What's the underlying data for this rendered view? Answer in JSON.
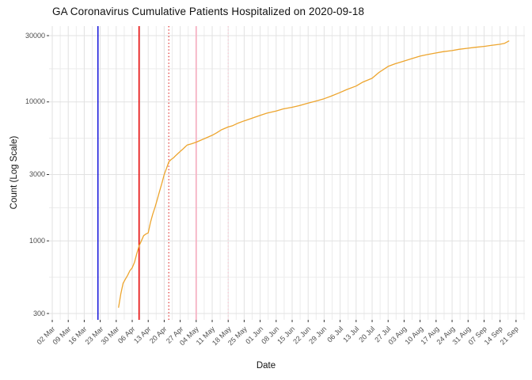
{
  "title": "GA Coronavirus Cumulative Patients Hospitalized on 2020-09-18",
  "colors": {
    "series_line": "#EDA52E",
    "vline_blue": "#1212D9",
    "vline_red": "#E80000",
    "vline_red_dotted": "#DE1414",
    "vline_pink": "#F6B2C3",
    "vline_pink_dotted": "#FAC6D2",
    "grid_major": "#E2E2E2",
    "grid_minor": "#ECECEC",
    "tick_mark": "#333333",
    "tick_label": "#4d4d4d",
    "background": "#FFFFFF"
  },
  "chart_data": {
    "type": "line",
    "title": "GA Coronavirus Cumulative Patients Hospitalized on 2020-09-18",
    "xlabel": "Date",
    "ylabel": "Count (Log Scale)",
    "y_scale": "log10",
    "ylim": [
      280,
      33000
    ],
    "grid": true,
    "legend_position": "none",
    "y_ticks": [
      300,
      1000,
      3000,
      10000,
      30000
    ],
    "y_tick_labels": [
      "300",
      "1000",
      "3000",
      "10000",
      "30000"
    ],
    "y_minor_gridlines": [
      548,
      1732,
      5477,
      17321
    ],
    "x_tick_labels": [
      "02 Mar",
      "09 Mar",
      "16 Mar",
      "23 Mar",
      "30 Mar",
      "06 Apr",
      "13 Apr",
      "20 Apr",
      "27 Apr",
      "04 May",
      "11 May",
      "18 May",
      "25 May",
      "01 Jun",
      "08 Jun",
      "15 Jun",
      "22 Jun",
      "29 Jun",
      "06 Jul",
      "13 Jul",
      "20 Jul",
      "27 Jul",
      "03 Aug",
      "10 Aug",
      "17 Aug",
      "24 Aug",
      "31 Aug",
      "07 Sep",
      "14 Sep",
      "21 Sep"
    ],
    "x_tick_dates": [
      "2020-03-02",
      "2020-03-09",
      "2020-03-16",
      "2020-03-23",
      "2020-03-30",
      "2020-04-06",
      "2020-04-13",
      "2020-04-20",
      "2020-04-27",
      "2020-05-04",
      "2020-05-11",
      "2020-05-18",
      "2020-05-25",
      "2020-06-01",
      "2020-06-08",
      "2020-06-15",
      "2020-06-22",
      "2020-06-29",
      "2020-07-06",
      "2020-07-13",
      "2020-07-20",
      "2020-07-27",
      "2020-08-03",
      "2020-08-10",
      "2020-08-17",
      "2020-08-24",
      "2020-08-31",
      "2020-09-07",
      "2020-09-14",
      "2020-09-21"
    ],
    "vlines": [
      {
        "name": "vline-blue-solid",
        "date": "2020-03-22",
        "color": "#1212D9",
        "style": "solid",
        "width": 1.5
      },
      {
        "name": "vline-red-solid",
        "date": "2020-04-09",
        "color": "#E80000",
        "style": "solid",
        "width": 1.5
      },
      {
        "name": "vline-red-dotted",
        "date": "2020-04-22",
        "color": "#DE1414",
        "style": "dotted",
        "width": 1.1
      },
      {
        "name": "vline-pink-solid",
        "date": "2020-05-04",
        "color": "#F6B2C3",
        "style": "solid",
        "width": 1.8
      },
      {
        "name": "vline-pink-dotted",
        "date": "2020-05-18",
        "color": "#FAC6D2",
        "style": "dotted",
        "width": 1.2
      }
    ],
    "series": [
      {
        "name": "Cumulative Patients Hospitalized",
        "color": "#EDA52E",
        "points": [
          [
            "2020-03-31",
            330
          ],
          [
            "2020-04-01",
            415
          ],
          [
            "2020-04-02",
            495
          ],
          [
            "2020-04-03",
            530
          ],
          [
            "2020-04-04",
            565
          ],
          [
            "2020-04-05",
            610
          ],
          [
            "2020-04-06",
            640
          ],
          [
            "2020-04-07",
            700
          ],
          [
            "2020-04-08",
            810
          ],
          [
            "2020-04-09",
            920
          ],
          [
            "2020-04-10",
            1000
          ],
          [
            "2020-04-11",
            1090
          ],
          [
            "2020-04-12",
            1120
          ],
          [
            "2020-04-13",
            1140
          ],
          [
            "2020-04-14",
            1360
          ],
          [
            "2020-04-15",
            1560
          ],
          [
            "2020-04-16",
            1750
          ],
          [
            "2020-04-17",
            2000
          ],
          [
            "2020-04-18",
            2280
          ],
          [
            "2020-04-19",
            2600
          ],
          [
            "2020-04-20",
            3000
          ],
          [
            "2020-04-21",
            3320
          ],
          [
            "2020-04-22",
            3700
          ],
          [
            "2020-04-23",
            3850
          ],
          [
            "2020-04-24",
            3950
          ],
          [
            "2020-04-25",
            4100
          ],
          [
            "2020-04-26",
            4250
          ],
          [
            "2020-04-27",
            4400
          ],
          [
            "2020-04-28",
            4550
          ],
          [
            "2020-04-29",
            4720
          ],
          [
            "2020-04-30",
            4890
          ],
          [
            "2020-05-02",
            5000
          ],
          [
            "2020-05-04",
            5130
          ],
          [
            "2020-05-06",
            5300
          ],
          [
            "2020-05-08",
            5480
          ],
          [
            "2020-05-11",
            5750
          ],
          [
            "2020-05-13",
            6000
          ],
          [
            "2020-05-15",
            6300
          ],
          [
            "2020-05-18",
            6600
          ],
          [
            "2020-05-20",
            6750
          ],
          [
            "2020-05-22",
            7000
          ],
          [
            "2020-05-25",
            7300
          ],
          [
            "2020-05-28",
            7600
          ],
          [
            "2020-06-01",
            8000
          ],
          [
            "2020-06-04",
            8300
          ],
          [
            "2020-06-08",
            8600
          ],
          [
            "2020-06-11",
            8900
          ],
          [
            "2020-06-15",
            9150
          ],
          [
            "2020-06-18",
            9400
          ],
          [
            "2020-06-22",
            9800
          ],
          [
            "2020-06-25",
            10100
          ],
          [
            "2020-06-29",
            10550
          ],
          [
            "2020-07-02",
            11000
          ],
          [
            "2020-07-06",
            11700
          ],
          [
            "2020-07-09",
            12300
          ],
          [
            "2020-07-13",
            13000
          ],
          [
            "2020-07-16",
            13900
          ],
          [
            "2020-07-20",
            14800
          ],
          [
            "2020-07-23",
            16300
          ],
          [
            "2020-07-27",
            18000
          ],
          [
            "2020-07-30",
            18800
          ],
          [
            "2020-08-03",
            19700
          ],
          [
            "2020-08-06",
            20400
          ],
          [
            "2020-08-10",
            21350
          ],
          [
            "2020-08-13",
            21900
          ],
          [
            "2020-08-17",
            22500
          ],
          [
            "2020-08-20",
            23000
          ],
          [
            "2020-08-24",
            23400
          ],
          [
            "2020-08-27",
            23900
          ],
          [
            "2020-08-31",
            24350
          ],
          [
            "2020-09-03",
            24700
          ],
          [
            "2020-09-07",
            25100
          ],
          [
            "2020-09-10",
            25500
          ],
          [
            "2020-09-14",
            26000
          ],
          [
            "2020-09-16",
            26400
          ],
          [
            "2020-09-18",
            27500
          ]
        ]
      }
    ]
  }
}
